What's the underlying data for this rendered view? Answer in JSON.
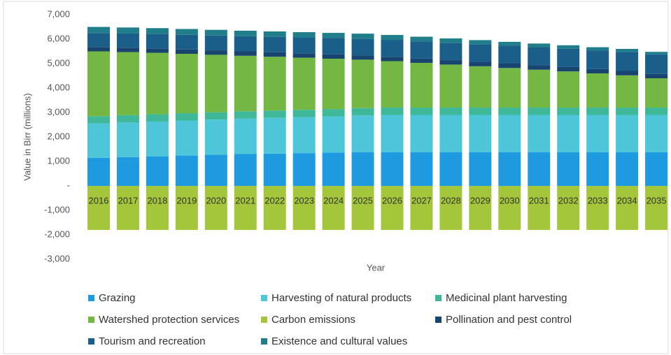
{
  "chart_data": {
    "type": "stacked_bar",
    "y_label": "Value in Birr (millions)",
    "x_label": "Year",
    "categories": [
      "2016",
      "2017",
      "2018",
      "2019",
      "2020",
      "2021",
      "2022",
      "2023",
      "2024",
      "2025",
      "2026",
      "2027",
      "2028",
      "2029",
      "2030",
      "2031",
      "2032",
      "2033",
      "2034",
      "2035"
    ],
    "ylim": [
      -3000,
      7000
    ],
    "yticks": [
      {
        "value": 7000,
        "label": "7,000"
      },
      {
        "value": 6000,
        "label": "6,000"
      },
      {
        "value": 5000,
        "label": "5,000"
      },
      {
        "value": 4000,
        "label": "4,000"
      },
      {
        "value": 3000,
        "label": "3,000"
      },
      {
        "value": 2000,
        "label": "2,000"
      },
      {
        "value": 1000,
        "label": "1,000"
      },
      {
        "value": 0,
        "label": "-"
      },
      {
        "value": -1000,
        "label": "-1,000"
      },
      {
        "value": -2000,
        "label": "-2,000"
      },
      {
        "value": -3000,
        "label": "-3,000"
      }
    ],
    "legend": "bottom",
    "series": [
      {
        "name": "Grazing",
        "color": "#1e9be0",
        "values": [
          1150,
          1180,
          1210,
          1240,
          1270,
          1300,
          1320,
          1340,
          1360,
          1380,
          1380,
          1380,
          1380,
          1380,
          1380,
          1380,
          1380,
          1380,
          1380,
          1380
        ]
      },
      {
        "name": "Harvesting of natural products",
        "color": "#4cc6d8",
        "values": [
          1400,
          1410,
          1420,
          1430,
          1440,
          1450,
          1460,
          1470,
          1480,
          1500,
          1520,
          1520,
          1520,
          1520,
          1520,
          1520,
          1520,
          1520,
          1520,
          1520
        ]
      },
      {
        "name": "Medicinal plant harvesting",
        "color": "#3fb89a",
        "values": [
          300,
          300,
          300,
          300,
          300,
          300,
          300,
          300,
          300,
          300,
          300,
          300,
          300,
          300,
          300,
          300,
          300,
          300,
          300,
          300
        ]
      },
      {
        "name": "Watershed protection services",
        "color": "#74b843",
        "values": [
          2650,
          2580,
          2510,
          2430,
          2350,
          2270,
          2200,
          2130,
          2060,
          1980,
          1900,
          1830,
          1760,
          1690,
          1620,
          1550,
          1480,
          1400,
          1320,
          1200
        ]
      },
      {
        "name": "Carbon emissions",
        "color": "#a3c63a",
        "values": [
          -1800,
          -1800,
          -1800,
          -1800,
          -1800,
          -1800,
          -1800,
          -1800,
          -1800,
          -1800,
          -1800,
          -1800,
          -1800,
          -1800,
          -1800,
          -1800,
          -1800,
          -1800,
          -1800,
          -1800
        ]
      },
      {
        "name": "Pollination and pest control",
        "color": "#17456f",
        "values": [
          180,
          180,
          180,
          180,
          180,
          180,
          180,
          180,
          180,
          180,
          180,
          180,
          180,
          180,
          180,
          180,
          180,
          180,
          180,
          180
        ]
      },
      {
        "name": "Tourism and recreation",
        "color": "#1a5f8a",
        "values": [
          570,
          580,
          590,
          600,
          610,
          620,
          635,
          650,
          665,
          680,
          690,
          700,
          710,
          720,
          730,
          740,
          750,
          760,
          780,
          800
        ]
      },
      {
        "name": "Existence and cultural values",
        "color": "#1f7e8a",
        "values": [
          250,
          245,
          240,
          235,
          230,
          225,
          220,
          215,
          210,
          205,
          200,
          190,
          180,
          170,
          160,
          150,
          140,
          130,
          120,
          100
        ]
      }
    ]
  }
}
